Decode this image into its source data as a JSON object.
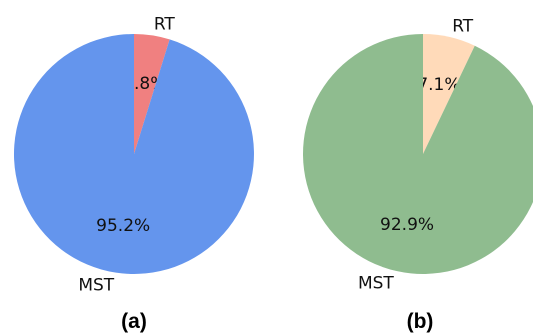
{
  "chart_data": [
    {
      "type": "pie",
      "panel_label": "(a)",
      "start_angle_deg": 90,
      "direction": "clockwise",
      "slices": [
        {
          "label": "RT",
          "value": 4.8,
          "percent_label": "4.8%",
          "color": "#F08080"
        },
        {
          "label": "MST",
          "value": 95.2,
          "percent_label": "95.2%",
          "color": "#6495ED"
        }
      ]
    },
    {
      "type": "pie",
      "panel_label": "(b)",
      "start_angle_deg": 90,
      "direction": "clockwise",
      "slices": [
        {
          "label": "RT",
          "value": 7.1,
          "percent_label": "7.1%",
          "color": "#FFDAB9"
        },
        {
          "label": "MST",
          "value": 92.9,
          "percent_label": "92.9%",
          "color": "#8FBC8F"
        }
      ]
    }
  ]
}
